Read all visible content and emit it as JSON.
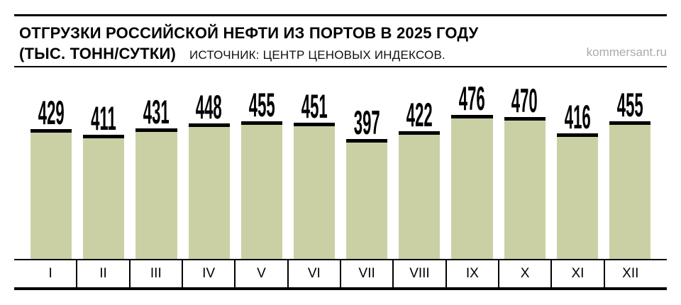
{
  "header": {
    "title_line1": "ОТГРУЗКИ РОССИЙСКОЙ НЕФТИ ИЗ ПОРТОВ В 2025 ГОДУ",
    "title_line2": "(ТЫС. ТОНН/СУТКИ)",
    "source": "ИСТОЧНИК: ЦЕНТР ЦЕНОВЫХ ИНДЕКСОВ.",
    "site": "kommersant.ru"
  },
  "colors": {
    "bar_fill": "#cbd0a4",
    "line_black": "#000000",
    "site_gray": "#ababab"
  },
  "chart_data": {
    "type": "bar",
    "title": "ОТГРУЗКИ РОССИЙСКОЙ НЕФТИ ИЗ ПОРТОВ В 2025 ГОДУ (ТЫС. ТОНН/СУТКИ)",
    "source": "ИСТОЧНИК: ЦЕНТР ЦЕНОВЫХ ИНДЕКСОВ.",
    "categories": [
      "I",
      "II",
      "III",
      "IV",
      "V",
      "VI",
      "VII",
      "VIII",
      "IX",
      "X",
      "XI",
      "XII"
    ],
    "values": [
      429,
      411,
      431,
      448,
      455,
      451,
      397,
      422,
      476,
      470,
      416,
      455
    ],
    "xlabel": "",
    "ylabel": "",
    "ylim": [
      0,
      476
    ],
    "grid": false,
    "legend": false,
    "value_labels": true,
    "bar_color": "#cbd0a4",
    "bar_cap_color": "#000000"
  }
}
